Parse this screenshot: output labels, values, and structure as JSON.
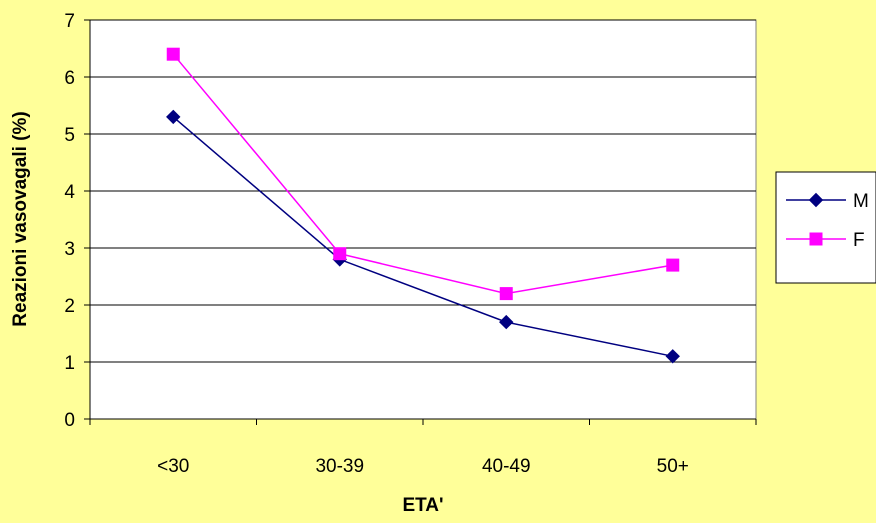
{
  "chart_data": {
    "type": "line",
    "title": "",
    "xlabel": "ETA'",
    "ylabel": "Reazioni vasovagali (%)",
    "categories": [
      "<30",
      "30-39",
      "40-49",
      "50+"
    ],
    "ylim": [
      0,
      7
    ],
    "yticks": [
      0,
      1,
      2,
      3,
      4,
      5,
      6,
      7
    ],
    "grid": true,
    "legend_position": "right",
    "series": [
      {
        "name": "M",
        "values": [
          5.3,
          2.8,
          1.7,
          1.1
        ],
        "color": "#000080",
        "marker": "diamond"
      },
      {
        "name": "F",
        "values": [
          6.4,
          2.9,
          2.2,
          2.7
        ],
        "color": "#FF00FF",
        "marker": "square"
      }
    ]
  },
  "colors": {
    "background": "#FFFF99",
    "plot_background": "#FFFFFF",
    "gridline": "#000000",
    "axis": "#000000"
  }
}
